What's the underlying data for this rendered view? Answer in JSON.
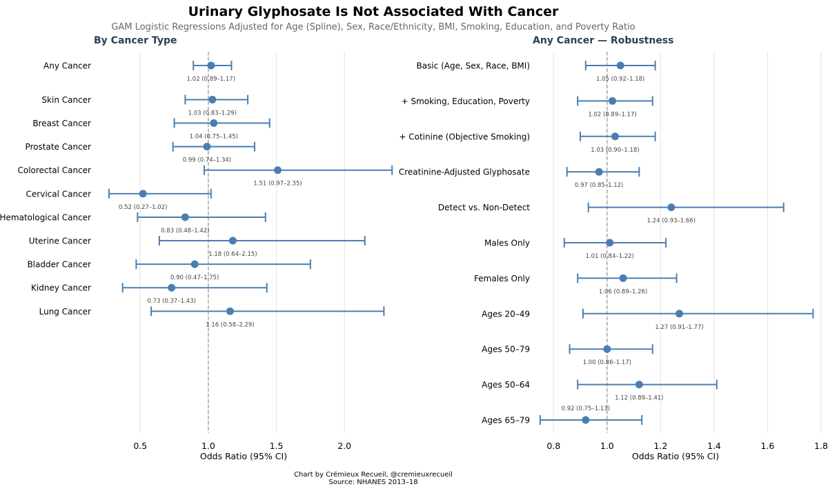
{
  "title": "Urinary Glyphosate Is Not Associated With Cancer",
  "subtitle": "GAM Logistic Regressions Adjusted for Age (Spline), Sex, Race/Ethnicity, BMI, Smoking, Education, and Poverty Ratio",
  "footer": {
    "credit": "Chart by Crémieux Recueil, @cremieuxrecueil",
    "source": "Source: NHANES 2013–18"
  },
  "colors": {
    "marker": "#4a7eb2",
    "reference_line": "#999999",
    "grid": "#e3e3e3",
    "title": "#000000",
    "panel_title": "#2c3e55"
  },
  "chart_data": [
    {
      "type": "forest",
      "title": "By Cancer Type",
      "xlabel": "Odds Ratio (95% CI)",
      "xlim": [
        0.24,
        2.43
      ],
      "xticks": [
        0.5,
        1.0,
        1.5,
        2.0
      ],
      "tick_labels": [
        "0.5",
        "1.0",
        "1.5",
        "2.0"
      ],
      "reference": 1.0,
      "grid": true,
      "row_slots": [
        0,
        1.45,
        2.45,
        3.45,
        4.45,
        5.45,
        6.45,
        7.45,
        8.45,
        9.45,
        10.45
      ],
      "categories": [
        "Any Cancer",
        "Skin Cancer",
        "Breast Cancer",
        "Prostate Cancer",
        "Colorectal Cancer",
        "Cervical Cancer",
        "Hematological Cancer",
        "Uterine Cancer",
        "Bladder Cancer",
        "Kidney Cancer",
        "Lung Cancer"
      ],
      "estimates": [
        1.02,
        1.03,
        1.04,
        0.99,
        1.51,
        0.52,
        0.83,
        1.18,
        0.9,
        0.73,
        1.16
      ],
      "ci_low": [
        0.89,
        0.83,
        0.75,
        0.74,
        0.97,
        0.27,
        0.48,
        0.64,
        0.47,
        0.37,
        0.58
      ],
      "ci_high": [
        1.17,
        1.29,
        1.45,
        1.34,
        2.35,
        1.02,
        1.42,
        2.15,
        1.75,
        1.43,
        2.29
      ],
      "labels": [
        "1.02 (0.89–1.17)",
        "1.03 (0.83–1.29)",
        "1.04 (0.75–1.45)",
        "0.99 (0.74–1.34)",
        "1.51 (0.97–2.35)",
        "0.52 (0.27–1.02)",
        "0.83 (0.48–1.42)",
        "1.18 (0.64–2.15)",
        "0.90 (0.47–1.75)",
        "0.73 (0.37–1.43)",
        "1.16 (0.58–2.29)"
      ]
    },
    {
      "type": "forest",
      "title": "Any Cancer — Robustness",
      "xlabel": "Odds Ratio (95% CI)",
      "xlim": [
        0.74,
        1.8
      ],
      "xticks": [
        0.8,
        1.0,
        1.2,
        1.4,
        1.6,
        1.8
      ],
      "tick_labels": [
        "0.8",
        "1.0",
        "1.2",
        "1.4",
        "1.6",
        "1.8"
      ],
      "reference": 1.0,
      "grid": true,
      "row_slots": [
        0,
        1,
        2,
        3,
        4,
        5,
        6,
        7,
        8,
        9,
        10
      ],
      "categories": [
        "Basic (Age, Sex, Race, BMI)",
        "+ Smoking, Education, Poverty",
        "+ Cotinine (Objective Smoking)",
        "Creatinine-Adjusted Glyphosate",
        "Detect vs. Non-Detect",
        "Males Only",
        "Females Only",
        "Ages 20–49",
        "Ages 50–79",
        "Ages 50–64",
        "Ages 65–79"
      ],
      "estimates": [
        1.05,
        1.02,
        1.03,
        0.97,
        1.24,
        1.01,
        1.06,
        1.27,
        1.0,
        1.12,
        0.92
      ],
      "ci_low": [
        0.92,
        0.89,
        0.9,
        0.85,
        0.93,
        0.84,
        0.89,
        0.91,
        0.86,
        0.89,
        0.75
      ],
      "ci_high": [
        1.18,
        1.17,
        1.18,
        1.12,
        1.66,
        1.22,
        1.26,
        1.77,
        1.17,
        1.41,
        1.13
      ],
      "labels": [
        "1.05 (0.92–1.18)",
        "1.02 (0.89–1.17)",
        "1.03 (0.90–1.18)",
        "0.97 (0.85–1.12)",
        "1.24 (0.93–1.66)",
        "1.01 (0.84–1.22)",
        "1.06 (0.89–1.26)",
        "1.27 (0.91–1.77)",
        "1.00 (0.86–1.17)",
        "1.12 (0.89–1.41)",
        "0.92 (0.75–1.13)"
      ],
      "label_position": [
        "below",
        "below",
        "below",
        "below",
        "below",
        "below",
        "below",
        "below",
        "below",
        "below",
        "above"
      ]
    }
  ]
}
